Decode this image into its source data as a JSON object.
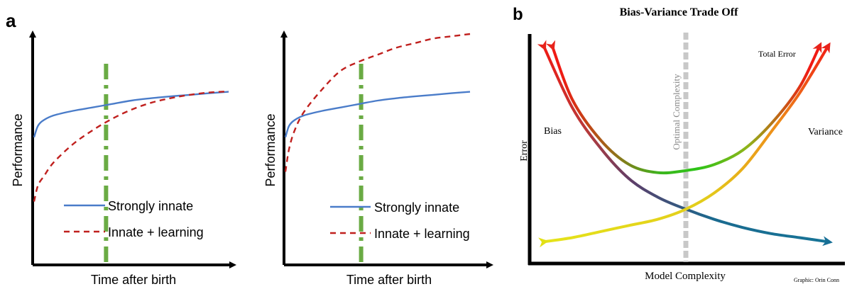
{
  "figure": {
    "panel_a_label": "a",
    "panel_b_label": "b"
  },
  "colors": {
    "innate": "#4a7cc9",
    "learning": "#c0201e",
    "milestone": "#6aab44",
    "axis": "#000000",
    "optimal": "#c8c8c8"
  },
  "chart_data": [
    {
      "id": "panel-a-left",
      "type": "line",
      "title": "",
      "xlabel": "Time after birth",
      "ylabel": "Performance",
      "xlim": [
        0,
        100
      ],
      "ylim": [
        0,
        100
      ],
      "legend": [
        {
          "label": "Strongly innate",
          "style": "solid",
          "color": "#4a7cc9"
        },
        {
          "label": "Innate + learning",
          "style": "dashed",
          "color": "#c0201e"
        }
      ],
      "vline_x": 37,
      "series": [
        {
          "name": "Strongly innate",
          "x": [
            0,
            2,
            5,
            10,
            20,
            30,
            40,
            50,
            60,
            70,
            80,
            90,
            100
          ],
          "values": [
            55,
            60,
            62.5,
            64.5,
            66.5,
            68,
            69.5,
            71,
            72,
            72.8,
            73.5,
            74.2,
            74.8
          ]
        },
        {
          "name": "Innate + learning",
          "x": [
            0,
            2,
            5,
            10,
            20,
            30,
            40,
            50,
            60,
            70,
            80,
            90,
            100
          ],
          "values": [
            27,
            34,
            38,
            44,
            52,
            58,
            63,
            67,
            70,
            72,
            73.5,
            74.5,
            75
          ]
        }
      ]
    },
    {
      "id": "panel-a-right",
      "type": "line",
      "title": "",
      "xlabel": "Time after birth",
      "ylabel": "Performance",
      "xlim": [
        0,
        100
      ],
      "ylim": [
        0,
        100
      ],
      "legend": [
        {
          "label": "Strongly innate",
          "style": "solid",
          "color": "#4a7cc9"
        },
        {
          "label": "Innate + learning",
          "style": "dashed",
          "color": "#c0201e"
        }
      ],
      "vline_x": 41,
      "series": [
        {
          "name": "Strongly innate",
          "x": [
            0,
            2,
            5,
            10,
            20,
            30,
            40,
            50,
            60,
            70,
            80,
            90,
            100
          ],
          "values": [
            55,
            60,
            62.5,
            64.5,
            66.5,
            68,
            69.5,
            71,
            72,
            72.8,
            73.5,
            74.2,
            74.8
          ]
        },
        {
          "name": "Innate + learning",
          "x": [
            0,
            2,
            5,
            10,
            20,
            30,
            40,
            50,
            60,
            70,
            80,
            90,
            100
          ],
          "values": [
            40,
            50,
            58,
            66,
            76,
            84,
            88,
            91,
            94,
            96,
            98,
            99,
            100
          ]
        }
      ]
    },
    {
      "id": "panel-b",
      "type": "line",
      "title": "Bias-Variance Trade Off",
      "xlabel": "Model Complexity",
      "ylabel": "Error",
      "xlim": [
        0,
        100
      ],
      "ylim": [
        0,
        100
      ],
      "optimal_x": 50,
      "optimal_label": "Optimal Complexity",
      "credit": "Graphic: Orin Conn",
      "series": [
        {
          "name": "Bias",
          "x": [
            0,
            10,
            20,
            30,
            40,
            50,
            60,
            70,
            80,
            90,
            100
          ],
          "values": [
            98,
            68,
            48,
            33,
            24,
            18,
            13,
            9,
            6,
            4,
            2
          ]
        },
        {
          "name": "Variance",
          "x": [
            0,
            10,
            20,
            30,
            40,
            50,
            60,
            70,
            80,
            90,
            100
          ],
          "values": [
            2,
            4,
            7,
            10,
            13,
            18,
            26,
            38,
            56,
            75,
            98
          ]
        },
        {
          "name": "Total Error",
          "x": [
            3,
            10,
            20,
            30,
            40,
            50,
            60,
            70,
            80,
            90,
            97
          ],
          "values": [
            98,
            72,
            52,
            40,
            36,
            37,
            40,
            47,
            60,
            78,
            98
          ]
        }
      ]
    }
  ]
}
